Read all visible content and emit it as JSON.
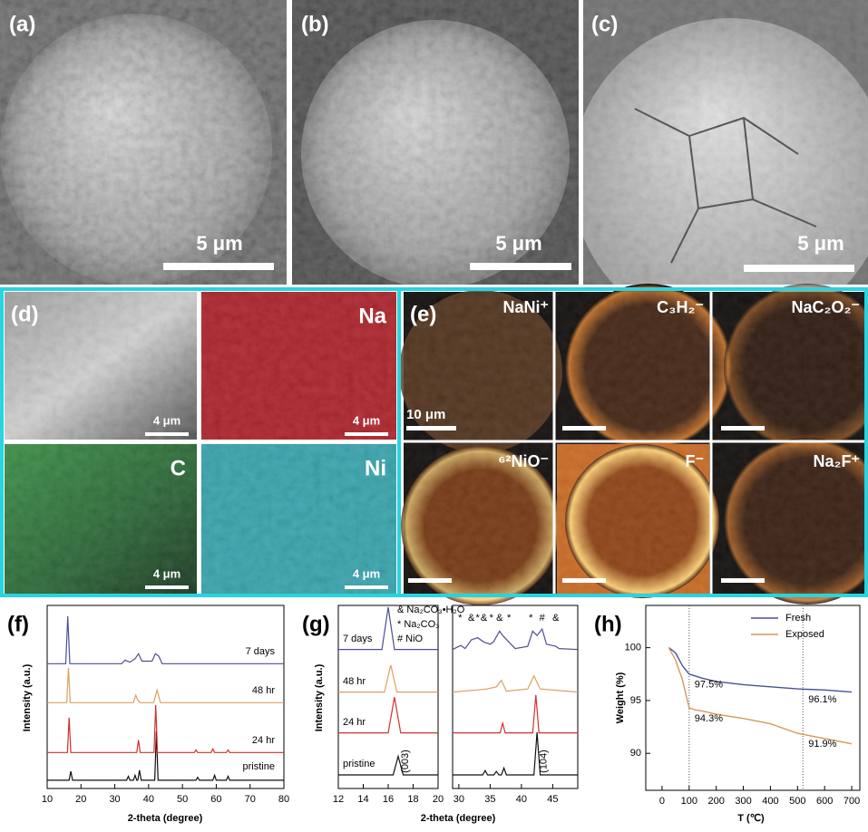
{
  "sem_panels": [
    {
      "label": "(a)",
      "scale_bar": "5 μm"
    },
    {
      "label": "(b)",
      "scale_bar": "5 μm"
    },
    {
      "label": "(c)",
      "scale_bar": "5 μm"
    }
  ],
  "eds_panel": {
    "label": "(d)",
    "tiles": [
      {
        "scale_bar": "4 μm"
      },
      {
        "element": "Na",
        "scale_bar": "4 μm"
      },
      {
        "element": "C",
        "scale_bar": "4 μm"
      },
      {
        "element": "Ni",
        "scale_bar": "4 μm"
      }
    ]
  },
  "tof_sims_panel": {
    "label": "(e)",
    "tiles": [
      {
        "ion": "NaNi⁺",
        "scale_bar": "10 μm"
      },
      {
        "ion": "C₃H₂⁻"
      },
      {
        "ion": "NaC₂O₂⁻"
      },
      {
        "ion": "⁶²NiO⁻"
      },
      {
        "ion": "F⁻"
      },
      {
        "ion": "Na₂F⁺"
      }
    ]
  },
  "chart_data": [
    {
      "type": "spectra",
      "panel_label": "(f)",
      "x_label": "2-theta (degree)",
      "y_label": "Intensity (a.u.)",
      "xlim": [
        10,
        80
      ],
      "xticks": [
        10,
        20,
        30,
        40,
        50,
        60,
        70,
        80
      ],
      "ylim": [
        0,
        1
      ],
      "series": [
        {
          "name": "pristine",
          "color": "#111111",
          "x": [
            10,
            16.5,
            17,
            17.5,
            33.5,
            34,
            34.5,
            35.5,
            36,
            36.5,
            36.8,
            37.3,
            37.8,
            41.8,
            42.3,
            42.8,
            54,
            54.5,
            55,
            59,
            59.5,
            60,
            63,
            63.5,
            64,
            80
          ],
          "values": [
            0.02,
            0.02,
            0.2,
            0.02,
            0.02,
            0.1,
            0.02,
            0.02,
            0.12,
            0.02,
            0.02,
            0.22,
            0.02,
            0.02,
            1.0,
            0.02,
            0.02,
            0.08,
            0.02,
            0.02,
            0.12,
            0.02,
            0.02,
            0.1,
            0.02,
            0.02
          ]
        },
        {
          "name": "24 hr",
          "color": "#d0312d",
          "x": [
            10,
            16,
            16.5,
            17,
            36.5,
            37,
            37.5,
            41.6,
            42.1,
            42.6,
            53.5,
            54,
            54.5,
            58.5,
            59,
            59.5,
            63,
            63.5,
            64,
            80
          ],
          "values": [
            0.05,
            0.05,
            0.75,
            0.05,
            0.05,
            0.3,
            0.05,
            0.05,
            1.0,
            0.05,
            0.05,
            0.1,
            0.05,
            0.05,
            0.12,
            0.05,
            0.05,
            0.1,
            0.05,
            0.05
          ]
        },
        {
          "name": "48 hr",
          "color": "#d9a066",
          "x": [
            10,
            15.8,
            16.3,
            16.8,
            35.5,
            36.2,
            36.8,
            37.5,
            41.5,
            42.5,
            43.5,
            80
          ],
          "values": [
            0.05,
            0.05,
            0.75,
            0.05,
            0.05,
            0.2,
            0.1,
            0.05,
            0.05,
            0.3,
            0.05,
            0.05
          ]
        },
        {
          "name": "7 days",
          "color": "#4d4f96",
          "x": [
            10,
            15.5,
            16.1,
            16.7,
            32,
            33,
            34.5,
            36,
            37,
            38,
            41,
            42,
            43,
            44,
            80
          ],
          "values": [
            0.05,
            0.05,
            1.0,
            0.05,
            0.05,
            0.12,
            0.08,
            0.15,
            0.25,
            0.1,
            0.1,
            0.25,
            0.2,
            0.05,
            0.05
          ]
        }
      ]
    },
    {
      "type": "spectra",
      "panel_label": "(g)",
      "x_label": "2-theta (degree)",
      "y_label": "Intensity (a.u.)",
      "segments": [
        {
          "xlim": [
            12,
            20
          ],
          "xticks": [
            12,
            14,
            16,
            18,
            20
          ]
        },
        {
          "xlim": [
            29,
            49
          ],
          "xticks": [
            30,
            35,
            40,
            45
          ]
        }
      ],
      "ylim": [
        0,
        1
      ],
      "legend_notes": [
        "& Na₂CO₃•H₂O",
        "* Na₂CO₃",
        "# NiO"
      ],
      "annotations": [
        {
          "x": 17.4,
          "label": "(003)"
        },
        {
          "x": 43.6,
          "label": "(104)"
        }
      ],
      "series": [
        {
          "name": "pristine",
          "color": "#111111",
          "x": [
            12,
            16.4,
            16.8,
            17.2,
            20,
            29,
            33.8,
            34.2,
            34.6,
            35.6,
            36,
            36.4,
            36.8,
            37.2,
            37.6,
            42,
            42.5,
            43,
            49
          ],
          "values": [
            0.02,
            0.02,
            0.45,
            0.02,
            0.02,
            0.02,
            0.02,
            0.12,
            0.02,
            0.02,
            0.1,
            0.02,
            0.02,
            0.18,
            0.02,
            0.02,
            1.0,
            0.02,
            0.02
          ]
        },
        {
          "name": "24 hr",
          "color": "#d0312d",
          "x": [
            12,
            16,
            16.5,
            17,
            20,
            29,
            36.6,
            37,
            37.4,
            41.8,
            42.3,
            42.8,
            49
          ],
          "values": [
            0.03,
            0.03,
            0.85,
            0.03,
            0.03,
            0.03,
            0.03,
            0.25,
            0.03,
            0.03,
            0.9,
            0.03,
            0.03
          ]
        },
        {
          "name": "48 hr",
          "color": "#d9a066",
          "x": [
            12,
            15.7,
            16.2,
            16.7,
            20,
            29,
            33,
            34.5,
            36,
            36.8,
            37.6,
            41,
            42,
            43,
            49
          ],
          "values": [
            0.03,
            0.03,
            0.65,
            0.03,
            0.03,
            0.03,
            0.08,
            0.1,
            0.15,
            0.3,
            0.05,
            0.1,
            0.4,
            0.1,
            0.03
          ]
        },
        {
          "name": "7 days",
          "color": "#4d4f96",
          "x": [
            12,
            15.5,
            16,
            16.5,
            20,
            29,
            30.3,
            31,
            32,
            33,
            34,
            35,
            35.5,
            36.5,
            37,
            38,
            39,
            41,
            41.8,
            42.5,
            43.3,
            44,
            45.5,
            46,
            49
          ],
          "values": [
            0.03,
            0.03,
            1.0,
            0.03,
            0.03,
            0.03,
            0.12,
            0.05,
            0.25,
            0.3,
            0.2,
            0.15,
            0.2,
            0.45,
            0.35,
            0.2,
            0.05,
            0.1,
            0.45,
            0.35,
            0.5,
            0.15,
            0.1,
            0.05,
            0.03
          ],
          "peak_marks": [
            {
              "x": 30.2,
              "label": "*"
            },
            {
              "x": 32,
              "label": "&"
            },
            {
              "x": 33,
              "label": "*"
            },
            {
              "x": 34,
              "label": "&"
            },
            {
              "x": 35.2,
              "label": "*"
            },
            {
              "x": 36.5,
              "label": "&"
            },
            {
              "x": 38,
              "label": "*"
            },
            {
              "x": 41.5,
              "label": "*"
            },
            {
              "x": 43.3,
              "label": "#"
            },
            {
              "x": 45.5,
              "label": "&"
            }
          ]
        }
      ]
    },
    {
      "type": "line",
      "panel_label": "(h)",
      "x_label": "T (℃)",
      "y_label": "Weight (%)",
      "xlim": [
        -60,
        730
      ],
      "xticks": [
        0,
        100,
        200,
        300,
        400,
        500,
        600,
        700
      ],
      "ylim": [
        86.5,
        104
      ],
      "yticks": [
        90,
        95,
        100
      ],
      "vlines": [
        100,
        520
      ],
      "legend": "upper right",
      "x": [
        25,
        50,
        75,
        100,
        125,
        150,
        200,
        300,
        400,
        500,
        600,
        700
      ],
      "series": [
        {
          "name": "Fresh",
          "color": "#4a4f9c",
          "values": [
            100,
            99.5,
            98.3,
            97.5,
            97.3,
            97.1,
            96.8,
            96.5,
            96.3,
            96.1,
            96.0,
            95.8
          ]
        },
        {
          "name": "Exposed",
          "color": "#d39a5c",
          "values": [
            100,
            98.8,
            97,
            94.3,
            94.1,
            94.0,
            93.7,
            93.3,
            92.8,
            91.9,
            91.4,
            90.9
          ]
        }
      ],
      "annotations": [
        {
          "series": 0,
          "x": 100,
          "value": 97.5,
          "label": "97.5%"
        },
        {
          "series": 0,
          "x": 520,
          "value": 96.1,
          "label": "96.1%"
        },
        {
          "series": 1,
          "x": 100,
          "value": 94.3,
          "label": "94.3%"
        },
        {
          "series": 1,
          "x": 520,
          "value": 91.9,
          "label": "91.9%"
        }
      ]
    }
  ]
}
